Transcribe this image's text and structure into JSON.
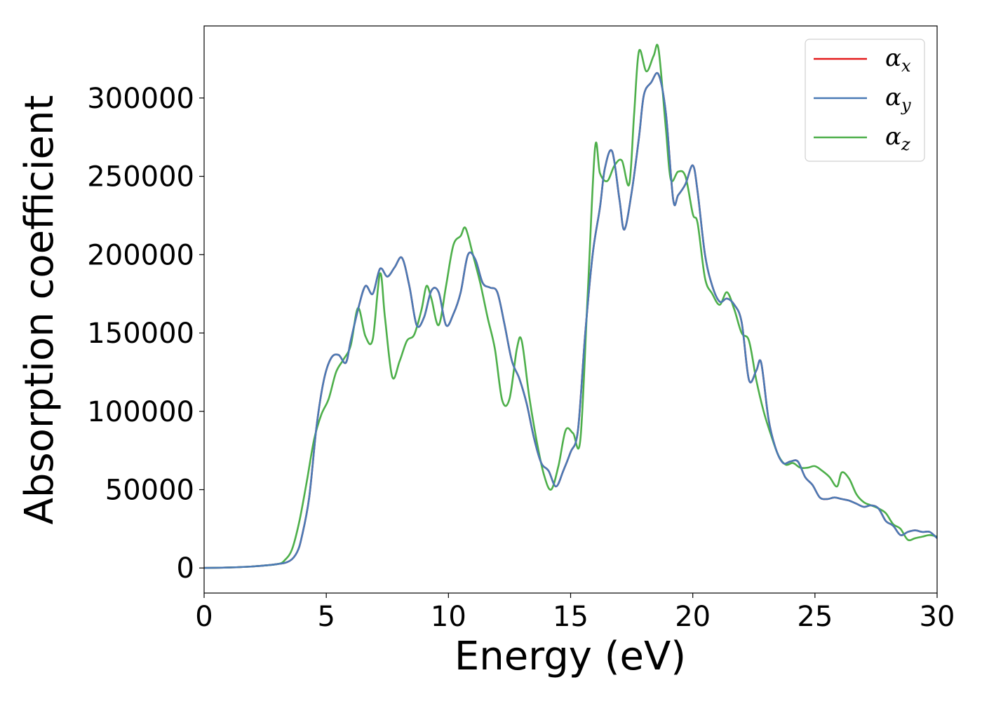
{
  "chart_data": {
    "type": "line",
    "title": "",
    "xlabel": "Energy (eV)",
    "ylabel": "Absorption coefficient",
    "xlim": [
      0,
      30
    ],
    "ylim": [
      -16000,
      346000
    ],
    "xticks": [
      0,
      5,
      10,
      15,
      20,
      25,
      30
    ],
    "xtick_labels": [
      "0",
      "5",
      "10",
      "15",
      "20",
      "25",
      "30"
    ],
    "yticks": [
      0,
      50000,
      100000,
      150000,
      200000,
      250000,
      300000
    ],
    "ytick_labels": [
      "0",
      "50000",
      "100000",
      "150000",
      "200000",
      "250000",
      "300000"
    ],
    "grid": false,
    "legend_position": "top-right",
    "series": [
      {
        "name": "αx",
        "legend_main": "α",
        "legend_sub": "x",
        "color": "#e41a1c",
        "x": [
          0,
          1,
          2,
          3,
          3.5,
          3.8,
          4.0,
          4.3,
          4.6,
          4.9,
          5.2,
          5.5,
          5.8,
          6.0,
          6.3,
          6.6,
          6.9,
          7.2,
          7.5,
          7.8,
          8.1,
          8.4,
          8.7,
          9.0,
          9.3,
          9.6,
          9.9,
          10.2,
          10.5,
          10.8,
          11.1,
          11.4,
          11.7,
          12.0,
          12.3,
          12.6,
          12.9,
          13.2,
          13.5,
          13.8,
          14.1,
          14.4,
          14.7,
          15.0,
          15.3,
          15.6,
          15.9,
          16.2,
          16.4,
          16.7,
          17.0,
          17.2,
          17.5,
          17.8,
          18.0,
          18.3,
          18.6,
          18.9,
          19.2,
          19.4,
          19.7,
          20.0,
          20.2,
          20.5,
          20.8,
          21.1,
          21.4,
          21.7,
          22.0,
          22.3,
          22.6,
          22.8,
          23.1,
          23.4,
          23.7,
          24.0,
          24.3,
          24.6,
          24.9,
          25.2,
          25.5,
          25.8,
          26.1,
          26.4,
          26.7,
          27.0,
          27.3,
          27.6,
          27.9,
          28.2,
          28.5,
          28.8,
          29.1,
          29.4,
          29.7,
          30.0
        ],
        "y": [
          0,
          300,
          1000,
          2500,
          4500,
          10000,
          20000,
          45000,
          90000,
          120000,
          134000,
          136000,
          131000,
          145000,
          165000,
          180000,
          175000,
          191000,
          186000,
          192000,
          198000,
          180000,
          155000,
          160000,
          177000,
          176000,
          155000,
          162000,
          176000,
          200000,
          197000,
          182000,
          179000,
          176000,
          155000,
          132000,
          121000,
          105000,
          83000,
          67000,
          62000,
          52000,
          62000,
          74000,
          88000,
          150000,
          200000,
          230000,
          255000,
          266000,
          235000,
          216000,
          240000,
          275000,
          302000,
          310000,
          315000,
          290000,
          235000,
          238000,
          245000,
          257000,
          240000,
          200000,
          180000,
          170000,
          172000,
          168000,
          157000,
          120000,
          126000,
          131000,
          95000,
          76000,
          67000,
          68000,
          68000,
          58000,
          53000,
          45000,
          44000,
          45000,
          44000,
          43000,
          41000,
          39000,
          40000,
          38000,
          30000,
          27000,
          21000,
          23000,
          24000,
          23000,
          23000,
          19000
        ]
      },
      {
        "name": "αy",
        "legend_main": "α",
        "legend_sub": "y",
        "color": "#4a7ab5",
        "x": [
          0,
          1,
          2,
          3,
          3.5,
          3.8,
          4.0,
          4.3,
          4.6,
          4.9,
          5.2,
          5.5,
          5.8,
          6.0,
          6.3,
          6.6,
          6.9,
          7.2,
          7.5,
          7.8,
          8.1,
          8.4,
          8.7,
          9.0,
          9.3,
          9.6,
          9.9,
          10.2,
          10.5,
          10.8,
          11.1,
          11.4,
          11.7,
          12.0,
          12.3,
          12.6,
          12.9,
          13.2,
          13.5,
          13.8,
          14.1,
          14.4,
          14.7,
          15.0,
          15.3,
          15.6,
          15.9,
          16.2,
          16.4,
          16.7,
          17.0,
          17.2,
          17.5,
          17.8,
          18.0,
          18.3,
          18.6,
          18.9,
          19.2,
          19.4,
          19.7,
          20.0,
          20.2,
          20.5,
          20.8,
          21.1,
          21.4,
          21.7,
          22.0,
          22.3,
          22.6,
          22.8,
          23.1,
          23.4,
          23.7,
          24.0,
          24.3,
          24.6,
          24.9,
          25.2,
          25.5,
          25.8,
          26.1,
          26.4,
          26.7,
          27.0,
          27.3,
          27.6,
          27.9,
          28.2,
          28.5,
          28.8,
          29.1,
          29.4,
          29.7,
          30.0
        ],
        "y": [
          0,
          300,
          1000,
          2500,
          4500,
          10000,
          20000,
          45000,
          90000,
          120000,
          134000,
          136000,
          131000,
          145000,
          165000,
          180000,
          175000,
          191000,
          186000,
          192000,
          198000,
          180000,
          155000,
          160000,
          177000,
          176000,
          155000,
          162000,
          176000,
          200000,
          197000,
          182000,
          179000,
          176000,
          155000,
          132000,
          121000,
          105000,
          83000,
          67000,
          62000,
          52000,
          62000,
          74000,
          88000,
          150000,
          200000,
          230000,
          255000,
          266000,
          235000,
          216000,
          240000,
          275000,
          302000,
          310000,
          315000,
          290000,
          235000,
          238000,
          245000,
          257000,
          240000,
          200000,
          180000,
          170000,
          172000,
          168000,
          157000,
          120000,
          126000,
          131000,
          95000,
          76000,
          67000,
          68000,
          68000,
          58000,
          53000,
          45000,
          44000,
          45000,
          44000,
          43000,
          41000,
          39000,
          40000,
          38000,
          30000,
          27000,
          21000,
          23000,
          24000,
          23000,
          23000,
          19000
        ]
      },
      {
        "name": "αz",
        "legend_main": "α",
        "legend_sub": "z",
        "color": "#4daf4a",
        "x": [
          0,
          1,
          2,
          3,
          3.3,
          3.6,
          3.9,
          4.2,
          4.5,
          4.8,
          5.1,
          5.4,
          5.7,
          6.0,
          6.3,
          6.6,
          6.9,
          7.2,
          7.4,
          7.7,
          8.0,
          8.3,
          8.6,
          8.9,
          9.1,
          9.3,
          9.6,
          9.9,
          10.2,
          10.5,
          10.7,
          11.0,
          11.3,
          11.6,
          11.9,
          12.2,
          12.5,
          12.8,
          13.0,
          13.3,
          13.6,
          13.9,
          14.2,
          14.5,
          14.8,
          15.1,
          15.4,
          15.7,
          16.0,
          16.2,
          16.5,
          16.8,
          17.1,
          17.4,
          17.6,
          17.8,
          18.1,
          18.4,
          18.6,
          18.9,
          19.1,
          19.4,
          19.7,
          20.0,
          20.2,
          20.5,
          20.8,
          21.1,
          21.4,
          21.7,
          22.0,
          22.3,
          22.6,
          22.9,
          23.2,
          23.5,
          23.8,
          24.1,
          24.4,
          24.7,
          25.0,
          25.3,
          25.6,
          25.9,
          26.1,
          26.4,
          26.7,
          27.0,
          27.3,
          27.6,
          27.9,
          28.2,
          28.5,
          28.8,
          29.1,
          29.4,
          29.7,
          30.0
        ],
        "y": [
          0,
          300,
          1000,
          2500,
          5000,
          12000,
          30000,
          55000,
          82000,
          98000,
          108000,
          125000,
          133000,
          142000,
          166000,
          148000,
          146000,
          188000,
          160000,
          122000,
          132000,
          145000,
          149000,
          165000,
          180000,
          172000,
          155000,
          180000,
          206000,
          212000,
          217000,
          200000,
          182000,
          160000,
          140000,
          107000,
          108000,
          140000,
          145000,
          110000,
          82000,
          60000,
          50000,
          65000,
          88000,
          86000,
          82000,
          175000,
          268000,
          252000,
          247000,
          257000,
          260000,
          245000,
          290000,
          330000,
          317000,
          327000,
          331000,
          280000,
          248000,
          253000,
          250000,
          226000,
          220000,
          185000,
          175000,
          168000,
          176000,
          165000,
          150000,
          145000,
          120000,
          100000,
          85000,
          72000,
          66000,
          67000,
          64000,
          64000,
          65000,
          62000,
          58000,
          52000,
          61000,
          57000,
          47000,
          42000,
          40000,
          38000,
          35000,
          28000,
          25000,
          18000,
          19000,
          20000,
          21000,
          20000
        ]
      }
    ]
  }
}
